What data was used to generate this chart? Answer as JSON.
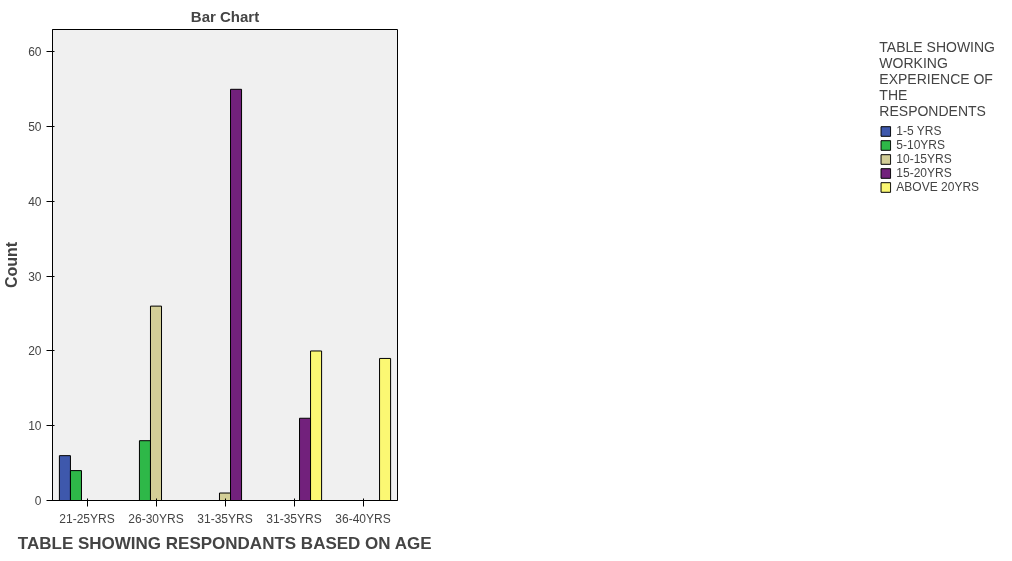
{
  "chart_data": {
    "type": "bar",
    "title": "Bar Chart",
    "xlabel": "TABLE SHOWING RESPONDANTS BASED ON AGE",
    "ylabel": "Count",
    "legend_title": "TABLE SHOWING WORKING EXPERIENCE OF THE RESPONDENTS",
    "categories": [
      "21-25YRS",
      "26-30YRS",
      "31-35YRS",
      "31-35YRS",
      "36-40YRS"
    ],
    "series": [
      {
        "name": "1-5 YRS",
        "color": "#3e58ac",
        "values": [
          6,
          null,
          null,
          null,
          null
        ]
      },
      {
        "name": "5-10YRS",
        "color": "#2eb848",
        "values": [
          4,
          8,
          null,
          null,
          null
        ]
      },
      {
        "name": "10-15YRS",
        "color": "#d3ce97",
        "values": [
          null,
          26,
          1,
          null,
          null
        ]
      },
      {
        "name": "15-20YRS",
        "color": "#72217c",
        "values": [
          null,
          null,
          55,
          11,
          null
        ]
      },
      {
        "name": "ABOVE 20YRS",
        "color": "#fbf873",
        "values": [
          null,
          null,
          null,
          20,
          19
        ]
      }
    ],
    "ylim": [
      0,
      63
    ],
    "yticks": [
      0,
      10,
      20,
      30,
      40,
      50,
      60
    ],
    "grid": false,
    "legend": "right"
  }
}
